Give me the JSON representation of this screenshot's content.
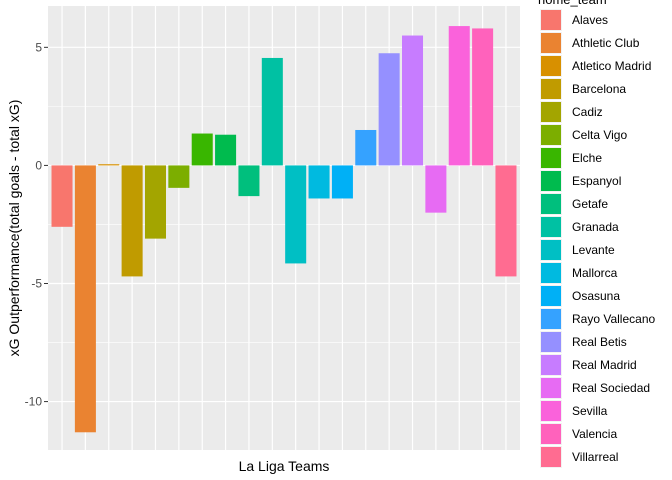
{
  "chart_data": {
    "type": "bar",
    "xlabel": "La Liga Teams",
    "ylabel": "xG Outperformance(total goals - total xG)",
    "ylim": [
      -12.05,
      6.75
    ],
    "yticks": [
      5,
      0,
      -5,
      -10
    ],
    "ytick_labels": [
      "5",
      "0",
      "-5",
      "-10"
    ],
    "grid": true,
    "legend_title": "home_team",
    "legend_position": "right",
    "categories": [
      "Alaves",
      "Athletic Club",
      "Atletico Madrid",
      "Barcelona",
      "Cadiz",
      "Celta Vigo",
      "Elche",
      "Espanyol",
      "Getafe",
      "Granada",
      "Levante",
      "Mallorca",
      "Osasuna",
      "Rayo Vallecano",
      "Real Betis",
      "Real Madrid",
      "Real Sociedad",
      "Sevilla",
      "Valencia",
      "Villarreal"
    ],
    "values": [
      -2.6,
      -11.3,
      0.05,
      -4.7,
      -3.1,
      -0.95,
      1.35,
      1.3,
      -1.3,
      4.55,
      -4.15,
      -1.4,
      -1.4,
      1.5,
      4.75,
      5.5,
      -2.0,
      5.9,
      5.8,
      -4.7
    ],
    "colors": [
      "#F8766D",
      "#EA8331",
      "#D89000",
      "#C09B00",
      "#A3A500",
      "#7CAE00",
      "#39B600",
      "#00BB4E",
      "#00BF7D",
      "#00C1A3",
      "#00BFC4",
      "#00BAE0",
      "#00B0F6",
      "#35A2FF",
      "#9590FF",
      "#C77CFF",
      "#E76BF3",
      "#FA62DB",
      "#FF62BC",
      "#FF6C91"
    ]
  }
}
